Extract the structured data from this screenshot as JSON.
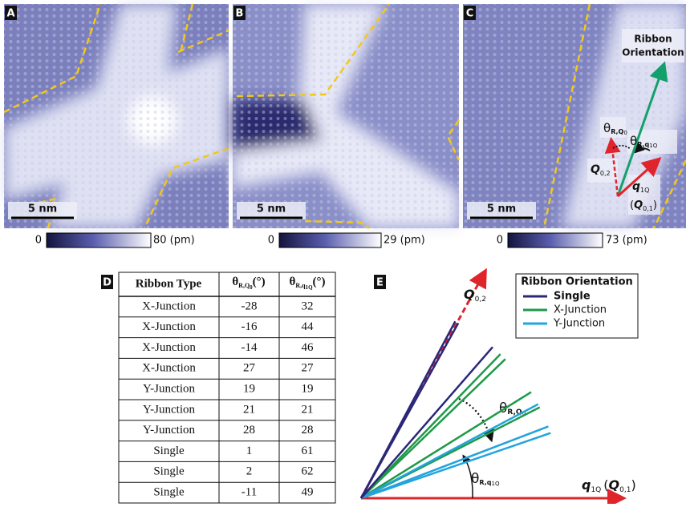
{
  "panels": [
    {
      "label": "A",
      "scale_bar": "5 nm",
      "colorbar_min": "0",
      "colorbar_max": "80 (pm)"
    },
    {
      "label": "B",
      "scale_bar": "5 nm",
      "colorbar_min": "0",
      "colorbar_max": "29 (pm)"
    },
    {
      "label": "C",
      "scale_bar": "5 nm",
      "colorbar_min": "0",
      "colorbar_max": "73 (pm)"
    }
  ],
  "panel_c": {
    "ribbon_orientation": [
      "Ribbon",
      "Orientation"
    ],
    "theta_q0": {
      "symbol": "θ",
      "sub": "R,Q",
      "subsub": "0"
    },
    "theta_q1q": {
      "symbol": "θ",
      "sub": "R,q",
      "subsub": "1Q"
    },
    "q02": {
      "main": "Q",
      "sub": "0,2"
    },
    "q1q": {
      "main": "q",
      "sub": "1Q"
    },
    "q01": {
      "open": "(",
      "main": "Q",
      "sub": "0,1",
      "close": ")"
    }
  },
  "table": {
    "label": "D",
    "header": [
      "Ribbon Type",
      {
        "symbol": "θ",
        "sub": "R,Q",
        "subsub": "0",
        "unit": "(°)"
      },
      {
        "symbol": "θ",
        "sub": "R,q",
        "subsub": "1Q",
        "unit": "(°)"
      }
    ],
    "rows": [
      [
        "X-Junction",
        -28,
        32
      ],
      [
        "X-Junction",
        -16,
        44
      ],
      [
        "X-Junction",
        -14,
        46
      ],
      [
        "X-Junction",
        27,
        27
      ],
      [
        "Y-Junction",
        19,
        19
      ],
      [
        "Y-Junction",
        21,
        21
      ],
      [
        "Y-Junction",
        28,
        28
      ],
      [
        "Single",
        1,
        61
      ],
      [
        "Single",
        2,
        62
      ],
      [
        "Single",
        -11,
        49
      ]
    ]
  },
  "panel_e": {
    "label": "E",
    "legend_title": "Ribbon Orientation",
    "legend": [
      {
        "name": "Single",
        "color": "#2b2778"
      },
      {
        "name": "X-Junction",
        "color": "#1e9a48"
      },
      {
        "name": "Y-Junction",
        "color": "#22a4dd"
      }
    ],
    "q02": {
      "main": "Q",
      "sub": "0,2"
    },
    "theta_q0": {
      "symbol": "θ",
      "sub": "R,Q",
      "subsub": "0"
    },
    "theta_q1q": {
      "symbol": "θ",
      "sub": "R,q",
      "subsub": "1Q"
    },
    "q_axis": {
      "main": "q",
      "sub": "1Q",
      "open": "(",
      "main2": "Q",
      "sub2": "0,1",
      "close": ")"
    }
  }
}
